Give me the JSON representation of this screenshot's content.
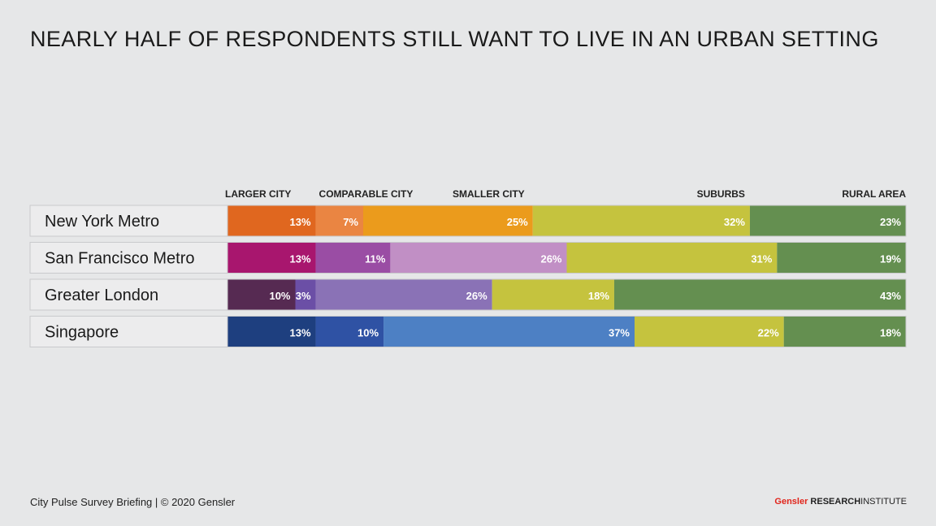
{
  "title": "NEARLY HALF OF RESPONDENTS STILL WANT TO LIVE IN AN URBAN SETTING",
  "footer": {
    "left": "City Pulse Survey Briefing | © 2020 Gensler",
    "brand": "Gensler",
    "brand_bold": "RESEARCH",
    "brand_rest": "INSTITUTE"
  },
  "chart_data": {
    "type": "bar",
    "orientation": "horizontal",
    "stacked": true,
    "unit": "%",
    "categories": [
      "New York Metro",
      "San Francisco Metro",
      "Greater London",
      "Singapore"
    ],
    "series": [
      {
        "name": "LARGER CITY",
        "values": [
          13,
          13,
          10,
          13
        ]
      },
      {
        "name": "COMPARABLE CITY",
        "values": [
          7,
          11,
          3,
          10
        ]
      },
      {
        "name": "SMALLER CITY",
        "values": [
          25,
          26,
          26,
          37
        ]
      },
      {
        "name": "SUBURBS",
        "values": [
          32,
          31,
          18,
          22
        ]
      },
      {
        "name": "RURAL AREA",
        "values": [
          23,
          19,
          43,
          18
        ]
      }
    ],
    "colors": [
      [
        "#e0671f",
        "#ea8542",
        "#eb9b1c",
        "#c5c33e",
        "#648f50"
      ],
      [
        "#a8166e",
        "#9a4da4",
        "#c18fc5",
        "#c5c33e",
        "#648f50"
      ],
      [
        "#562a52",
        "#6b4fa6",
        "#8a72b6",
        "#c5c33e",
        "#648f50"
      ],
      [
        "#1e3f7f",
        "#2f52a4",
        "#4d80c4",
        "#c5c33e",
        "#648f50"
      ]
    ],
    "xlim": [
      0,
      100
    ],
    "legend": "top"
  }
}
